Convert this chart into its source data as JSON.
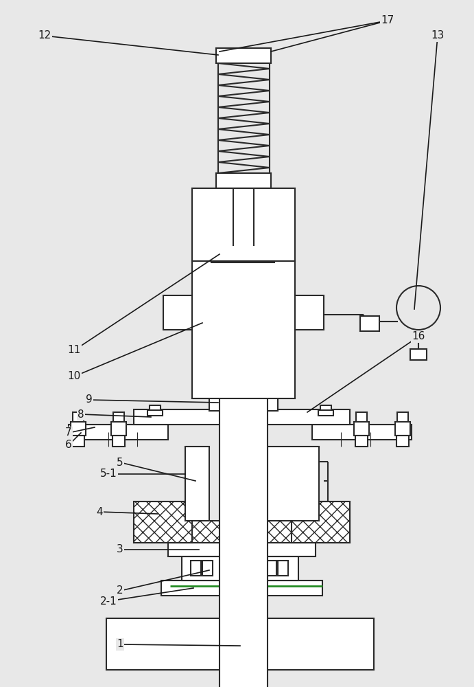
{
  "bg_color": "#e8e8e8",
  "line_color": "#2a2a2a",
  "line_width": 1.5,
  "label_fontsize": 11,
  "label_color": "#1a1a1a"
}
